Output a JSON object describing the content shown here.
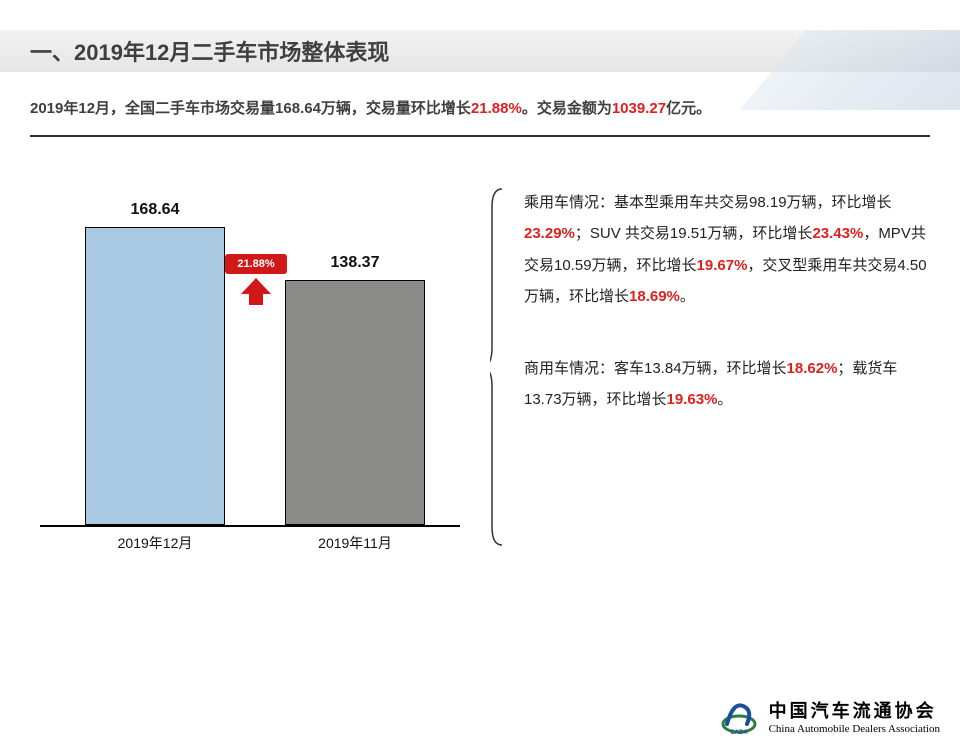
{
  "header": {
    "title": "一、2019年12月二手车市场整体表现"
  },
  "subtitle": {
    "pre": "2019年12月，全国二手车市场交易量168.64万辆，交易量环比增长",
    "pct": "21.88%",
    "mid": "。交易金额为",
    "amount": "1039.27",
    "post": "亿元。"
  },
  "chart": {
    "type": "bar",
    "categories": [
      "2019年12月",
      "2019年11月"
    ],
    "values": [
      168.64,
      138.37
    ],
    "value_labels": [
      "168.64",
      "138.37"
    ],
    "bar_colors": [
      "#a9c9e2",
      "#8a8a86"
    ],
    "bar_border": "#000000",
    "baseline_color": "#000000",
    "ymax": 170,
    "label_fontsize": 16,
    "axis_fontsize": 14,
    "growth_badge": {
      "text": "21.88%",
      "bg": "#d01818",
      "fg": "#ffffff",
      "between_bars": true
    }
  },
  "right_text": {
    "p1_parts": [
      {
        "t": "乘用车情况：基本型乘用车共交易98.19万辆，环比增长",
        "hl": false
      },
      {
        "t": "23.29%",
        "hl": true
      },
      {
        "t": "；SUV 共交易19.51万辆，环比增长",
        "hl": false
      },
      {
        "t": "23.43%",
        "hl": true
      },
      {
        "t": "，MPV共交易10.59万辆，环比增长",
        "hl": false
      },
      {
        "t": "19.67%",
        "hl": true
      },
      {
        "t": "，交叉型乘用车共交易4.50万辆，环比增长",
        "hl": false
      },
      {
        "t": "18.69%",
        "hl": true
      },
      {
        "t": "。",
        "hl": false
      }
    ],
    "p2_parts": [
      {
        "t": "商用车情况：客车13.84万辆，环比增长",
        "hl": false
      },
      {
        "t": "18.62%",
        "hl": true
      },
      {
        "t": "；载货车13.73万辆，环比增长",
        "hl": false
      },
      {
        "t": "19.63%",
        "hl": true
      },
      {
        "t": "。",
        "hl": false
      }
    ]
  },
  "footer": {
    "org_zh": "中国汽车流通协会",
    "org_en": "China Automobile Dealers Association",
    "abbr": "CADA"
  },
  "colors": {
    "highlight": "#e02020",
    "text": "#3f3f3f",
    "badge_red": "#d01818"
  }
}
